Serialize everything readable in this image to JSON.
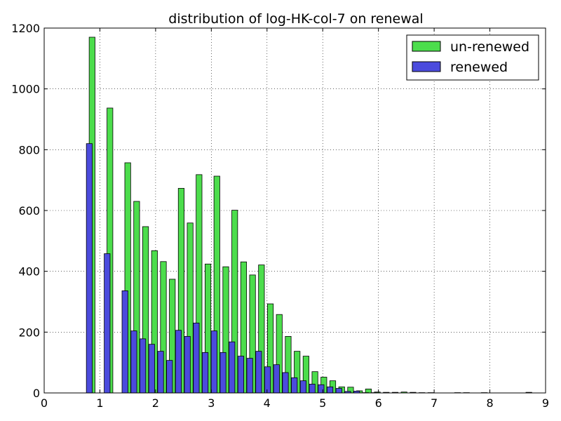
{
  "chart_data": {
    "type": "bar",
    "title": "distribution of log-HK-col-7 on renewal",
    "xlabel": "",
    "ylabel": "",
    "xlim": [
      0,
      9
    ],
    "ylim": [
      0,
      1200
    ],
    "xticks": [
      "0",
      "1",
      "2",
      "3",
      "4",
      "5",
      "6",
      "7",
      "8",
      "9"
    ],
    "yticks": [
      "0",
      "200",
      "400",
      "600",
      "800",
      "1000",
      "1200"
    ],
    "grid": true,
    "legend_position": "top-right",
    "bar_width": 0.105,
    "series": [
      {
        "name": "un-renewed",
        "color": "#4cdd4c",
        "x": [
          0.86,
          1.18,
          1.5,
          1.66,
          1.82,
          1.98,
          2.14,
          2.3,
          2.46,
          2.62,
          2.78,
          2.94,
          3.1,
          3.26,
          3.42,
          3.58,
          3.74,
          3.9,
          4.06,
          4.22,
          4.38,
          4.54,
          4.7,
          4.86,
          5.02,
          5.18,
          5.34,
          5.5,
          5.66,
          5.82,
          5.98,
          6.14,
          6.3,
          6.46,
          6.62,
          6.78,
          6.94,
          7.42,
          7.58,
          7.9,
          8.7
        ],
        "values": [
          1170,
          937,
          757,
          630,
          547,
          468,
          432,
          374,
          673,
          559,
          718,
          424,
          713,
          415,
          601,
          431,
          388,
          421,
          293,
          258,
          186,
          137,
          121,
          70,
          52,
          40,
          20,
          19,
          7,
          13,
          3,
          2,
          2,
          3,
          2,
          1,
          1,
          1,
          1,
          1,
          2
        ]
      },
      {
        "name": "renewed",
        "color": "#4b4bdd",
        "x": [
          0.81,
          1.13,
          1.45,
          1.61,
          1.77,
          1.93,
          2.09,
          2.25,
          2.41,
          2.57,
          2.73,
          2.89,
          3.05,
          3.21,
          3.37,
          3.53,
          3.69,
          3.85,
          4.01,
          4.17,
          4.33,
          4.49,
          4.65,
          4.81,
          4.97,
          5.13,
          5.29,
          5.45,
          5.61,
          5.77,
          5.93
        ],
        "values": [
          820,
          458,
          336,
          204,
          178,
          160,
          137,
          107,
          206,
          186,
          230,
          133,
          204,
          133,
          168,
          121,
          114,
          137,
          86,
          93,
          67,
          50,
          40,
          29,
          27,
          20,
          15,
          5,
          6,
          1,
          1
        ]
      }
    ]
  }
}
